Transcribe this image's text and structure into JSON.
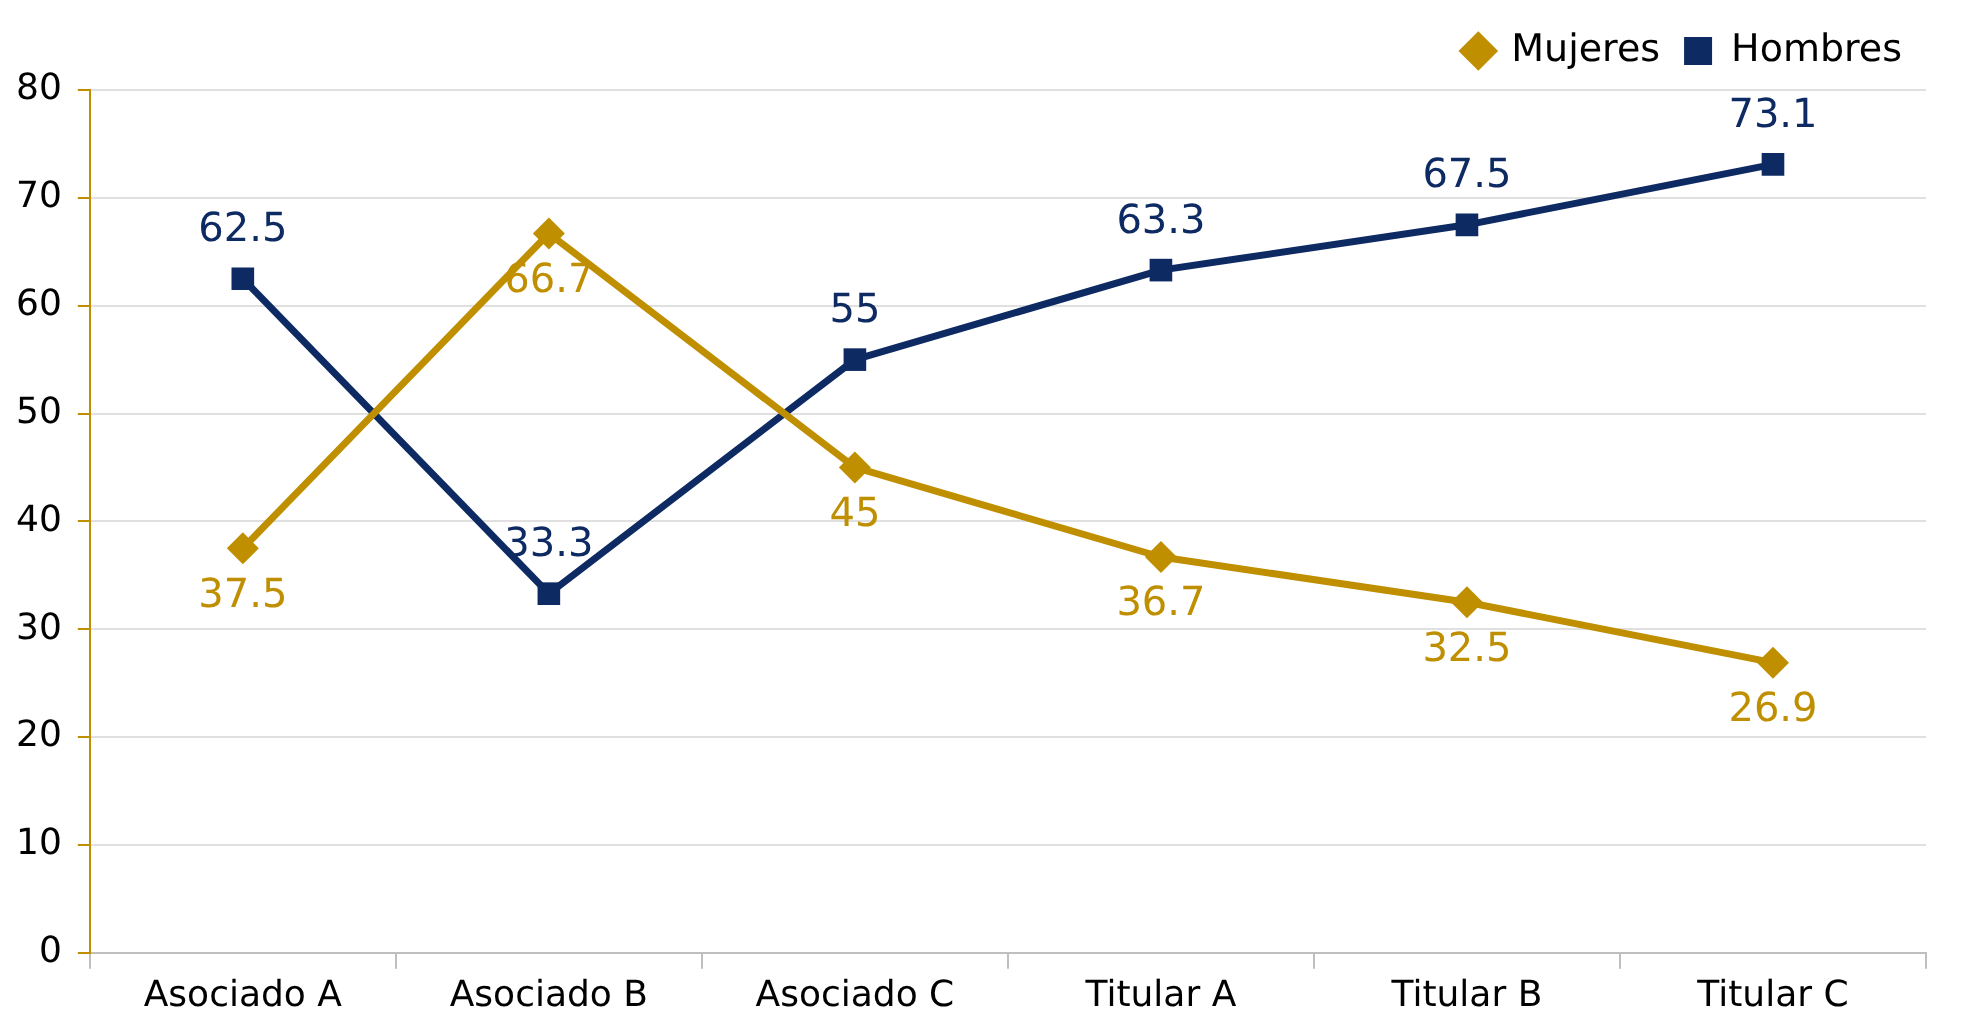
{
  "chart_data": {
    "type": "line",
    "categories": [
      "Asociado A",
      "Asociado B",
      "Asociado C",
      "Titular A",
      "Titular B",
      "Titular C"
    ],
    "series": [
      {
        "name": "Mujeres",
        "color": "#bf8f00",
        "marker": "diamond",
        "values": [
          37.5,
          66.7,
          45,
          36.7,
          32.5,
          26.9
        ]
      },
      {
        "name": "Hombres",
        "color": "#0e2a63",
        "marker": "square",
        "values": [
          62.5,
          33.3,
          55,
          63.3,
          67.5,
          73.1
        ]
      }
    ],
    "ylim": [
      0,
      80
    ],
    "yticks": [
      0,
      10,
      20,
      30,
      40,
      50,
      60,
      70,
      80
    ],
    "grid": "y",
    "legend": "top right",
    "data_labels": true,
    "line_style": "solid"
  }
}
